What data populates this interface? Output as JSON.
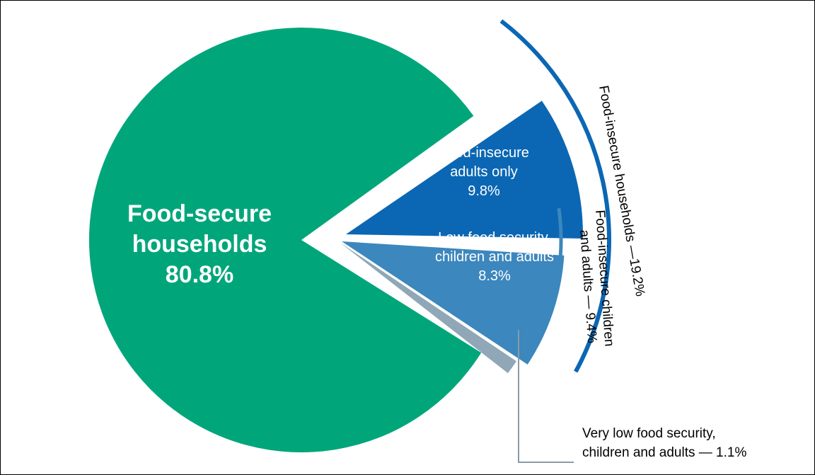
{
  "chart_data": {
    "type": "pie",
    "slices": [
      {
        "label": "Food-secure households",
        "value": 80.8,
        "value_text": "80.8%",
        "color": "#00a67a"
      },
      {
        "label": "Food-insecure adults only",
        "value": 9.8,
        "value_text": "9.8%",
        "color": "#0b67b3"
      },
      {
        "label": "Low food security, children and adults",
        "value": 8.3,
        "value_text": "8.3%",
        "color": "#3c87bd"
      },
      {
        "label": "Very low food security, children and adults",
        "value": 1.1,
        "value_text": "1.1%",
        "color": "#8fa7b6"
      }
    ],
    "labels": {
      "secure_l1": "Food-secure",
      "secure_l2": "households",
      "secure_l3": "80.8%",
      "adults_l1": "Food-insecure",
      "adults_l2": "adults only",
      "adults_l3": "9.8%",
      "low_l1": "Low food security,",
      "low_l2": "children and adults",
      "low_l3": "8.3%",
      "vlow_l1": "Very low food security,",
      "vlow_l2": "children and adults — 1.1%"
    },
    "brackets": [
      {
        "label": "Food-insecure households —19.2%",
        "value": 19.2,
        "color": "#0b67b3"
      },
      {
        "label_l1": "Food-insecure children",
        "label_l2": "and adults — 9.4%",
        "value": 9.4,
        "color": "#3c87bd"
      }
    ]
  }
}
